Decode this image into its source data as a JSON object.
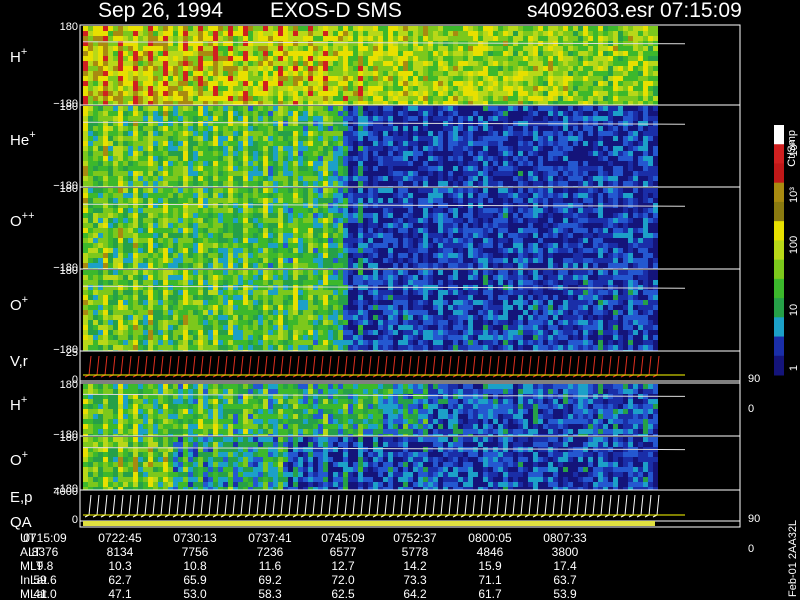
{
  "header": {
    "date": "Sep 26, 1994",
    "instrument": "EXOS-D SMS",
    "file": "s4092603.esr",
    "time": "07:15:09"
  },
  "panels": [
    {
      "label": "H",
      "sup": "+",
      "top": "180",
      "bottom": "−180"
    },
    {
      "label": "He",
      "sup": "+",
      "top": "180",
      "bottom": "−180"
    },
    {
      "label": "O",
      "sup": "++",
      "top": "180",
      "bottom": "−180"
    },
    {
      "label": "O",
      "sup": "+",
      "top": "180",
      "bottom": "−180"
    },
    {
      "label": "V,r",
      "top": "25",
      "bottom": "0",
      "right_top": "90",
      "right_bottom": "0"
    },
    {
      "label": "H",
      "sup": "+",
      "top": "180",
      "bottom": "−180"
    },
    {
      "label": "O",
      "sup": "+",
      "top": "180",
      "bottom": "−180"
    },
    {
      "label": "E,p",
      "top": "4000",
      "bottom": "0",
      "right_top": "90",
      "right_bottom": "0"
    }
  ],
  "qa": "QA",
  "colorbar": {
    "unit": "Ct/Smp",
    "labels": [
      "10⁴",
      "10³",
      "100",
      "10",
      "1"
    ]
  },
  "table": {
    "rows": [
      {
        "label": "UT",
        "values": [
          "0715:09",
          "0722:45",
          "0730:13",
          "0737:41",
          "0745:09",
          "0752:37",
          "0800:05",
          "0807:33"
        ]
      },
      {
        "label": "ALT",
        "values": [
          "8376",
          "8134",
          "7756",
          "7236",
          "6577",
          "5778",
          "4846",
          "3800"
        ]
      },
      {
        "label": "MLT",
        "values": [
          "9.8",
          "10.3",
          "10.8",
          "11.6",
          "12.7",
          "14.2",
          "15.9",
          "17.4"
        ]
      },
      {
        "label": "InLat",
        "values": [
          "59.6",
          "62.7",
          "65.9",
          "69.2",
          "72.0",
          "73.3",
          "71.1",
          "63.7"
        ]
      },
      {
        "label": "MLat",
        "values": [
          "41.0",
          "47.1",
          "53.0",
          "58.3",
          "62.5",
          "64.2",
          "61.7",
          "53.9"
        ]
      }
    ]
  },
  "footer": "Feb-01 2AA32L"
}
